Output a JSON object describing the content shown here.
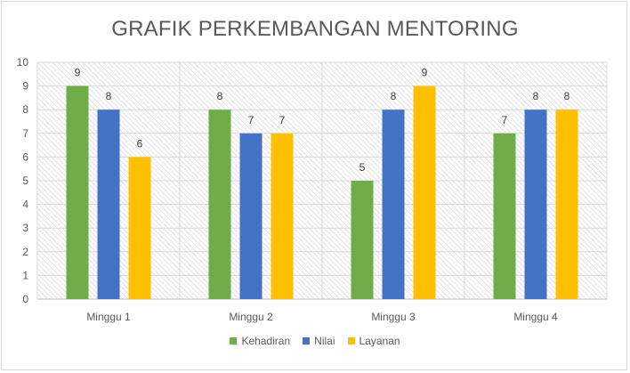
{
  "chart_data": {
    "type": "bar",
    "title": "GRAFIK PERKEMBANGAN MENTORING",
    "categories": [
      "Minggu 1",
      "Minggu 2",
      "Minggu 3",
      "Minggu 4"
    ],
    "series": [
      {
        "name": "Kehadiran",
        "values": [
          9,
          8,
          5,
          7
        ],
        "color": "#70ad47"
      },
      {
        "name": "Nilai",
        "values": [
          8,
          7,
          8,
          8
        ],
        "color": "#4472c4"
      },
      {
        "name": "Layanan",
        "values": [
          6,
          7,
          9,
          8
        ],
        "color": "#ffc000"
      }
    ],
    "ylim": [
      0,
      10
    ],
    "yticks": [
      "0",
      "1",
      "2",
      "3",
      "4",
      "5",
      "6",
      "7",
      "8",
      "9",
      "10"
    ],
    "grid": true,
    "legend_position": "bottom"
  }
}
